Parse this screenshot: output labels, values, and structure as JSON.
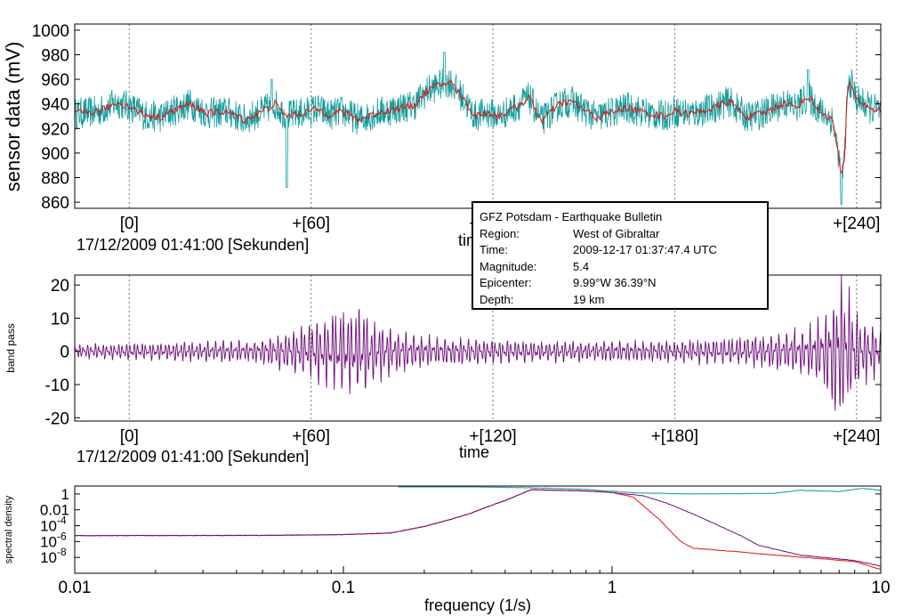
{
  "chart_data": [
    {
      "type": "line",
      "name": "sensor",
      "title": "",
      "ylabel": "sensor data (mV)",
      "xlabel": "time",
      "ylim": [
        855,
        1005
      ],
      "xlim": [
        -18,
        248
      ],
      "yticks": [
        860,
        880,
        900,
        920,
        940,
        960,
        980,
        1000
      ],
      "xticks": [
        {
          "value": 0,
          "label": "[0]"
        },
        {
          "value": 60,
          "label": "+[60]"
        },
        {
          "value": 120,
          "label": "+[120]"
        },
        {
          "value": 180,
          "label": "+[180]"
        },
        {
          "value": 240,
          "label": "+[240]"
        }
      ],
      "date_label": "17/12/2009 01:41:00 [Sekunden]",
      "series": [
        {
          "name": "raw",
          "color": "#139c9c",
          "baseline": 933,
          "noise_amp": 13,
          "spikes": [
            {
              "t": 47,
              "v": 960
            },
            {
              "t": 52,
              "v": 872
            },
            {
              "t": 104,
              "v": 982
            },
            {
              "t": 224,
              "v": 968
            },
            {
              "t": 235,
              "v": 858
            }
          ]
        },
        {
          "name": "smoothed",
          "color": "#e01010",
          "points": [
            [
              -18,
              932
            ],
            [
              -10,
              934
            ],
            [
              -4,
              941
            ],
            [
              0,
              938
            ],
            [
              5,
              931
            ],
            [
              10,
              929
            ],
            [
              15,
              935
            ],
            [
              20,
              940
            ],
            [
              26,
              932
            ],
            [
              32,
              934
            ],
            [
              38,
              927
            ],
            [
              44,
              934
            ],
            [
              48,
              940
            ],
            [
              52,
              930
            ],
            [
              58,
              933
            ],
            [
              62,
              936
            ],
            [
              66,
              931
            ],
            [
              70,
              934
            ],
            [
              76,
              927
            ],
            [
              82,
              933
            ],
            [
              88,
              936
            ],
            [
              94,
              939
            ],
            [
              98,
              950
            ],
            [
              102,
              955
            ],
            [
              106,
              958
            ],
            [
              110,
              945
            ],
            [
              114,
              930
            ],
            [
              118,
              933
            ],
            [
              122,
              930
            ],
            [
              128,
              938
            ],
            [
              132,
              945
            ],
            [
              136,
              926
            ],
            [
              142,
              940
            ],
            [
              146,
              942
            ],
            [
              150,
              935
            ],
            [
              154,
              929
            ],
            [
              158,
              932
            ],
            [
              164,
              937
            ],
            [
              170,
              933
            ],
            [
              176,
              930
            ],
            [
              180,
              934
            ],
            [
              186,
              932
            ],
            [
              192,
              936
            ],
            [
              198,
              942
            ],
            [
              204,
              929
            ],
            [
              210,
              933
            ],
            [
              216,
              941
            ],
            [
              220,
              937
            ],
            [
              224,
              946
            ],
            [
              228,
              934
            ],
            [
              232,
              927
            ],
            [
              234,
              900
            ],
            [
              235,
              879
            ],
            [
              236,
              893
            ],
            [
              237,
              950
            ],
            [
              238,
              958
            ],
            [
              240,
              944
            ],
            [
              244,
              937
            ],
            [
              248,
              934
            ]
          ]
        }
      ]
    },
    {
      "type": "line",
      "name": "bandpass",
      "ylabel": "band pass",
      "xlabel": "time",
      "ylim": [
        -21,
        23
      ],
      "xlim": [
        -18,
        248
      ],
      "yticks": [
        -20,
        -10,
        0,
        10,
        20
      ],
      "xticks": [
        {
          "value": 0,
          "label": "[0]"
        },
        {
          "value": 60,
          "label": "+[60]"
        },
        {
          "value": 120,
          "label": "+[120]"
        },
        {
          "value": 180,
          "label": "+[180]"
        },
        {
          "value": 240,
          "label": "+[240]"
        }
      ],
      "date_label": "17/12/2009 01:41:00 [Sekunden]",
      "series": [
        {
          "name": "band pass",
          "color": "#6e0f7a",
          "envelope": [
            [
              -18,
              2
            ],
            [
              40,
              3
            ],
            [
              50,
              5
            ],
            [
              58,
              7
            ],
            [
              66,
              10
            ],
            [
              72,
              12
            ],
            [
              76,
              13
            ],
            [
              80,
              9
            ],
            [
              88,
              6
            ],
            [
              100,
              4
            ],
            [
              130,
              3
            ],
            [
              180,
              3
            ],
            [
              205,
              4
            ],
            [
              225,
              7
            ],
            [
              230,
              11
            ],
            [
              234,
              22
            ],
            [
              237,
              17
            ],
            [
              241,
              10
            ],
            [
              248,
              6
            ]
          ]
        }
      ]
    },
    {
      "type": "line",
      "name": "spectrum",
      "xscale": "log",
      "yscale": "log",
      "xlim": [
        0.01,
        10
      ],
      "ylim": [
        1e-10,
        10
      ],
      "xlabel": "frequency (1/s)",
      "ylabel": "spectral density",
      "xticks": [
        {
          "value": 0.01,
          "label": "0.01"
        },
        {
          "value": 0.1,
          "label": "0.1"
        },
        {
          "value": 1,
          "label": "1"
        },
        {
          "value": 10,
          "label": "10"
        }
      ],
      "yticks": [
        {
          "value": 1,
          "label": "1",
          "sup": ""
        },
        {
          "value": 0.01,
          "label": "0.01",
          "sup": ""
        },
        {
          "value": 0.0001,
          "label": "10",
          "sup": "-4"
        },
        {
          "value": 1e-06,
          "label": "10",
          "sup": "-6"
        },
        {
          "value": 1e-08,
          "label": "10",
          "sup": "-8"
        }
      ],
      "series": [
        {
          "name": "sensor spectrum",
          "color": "#139c9c",
          "points": [
            [
              0.16,
              10
            ],
            [
              0.3,
              8
            ],
            [
              0.5,
              6
            ],
            [
              0.8,
              3.8
            ],
            [
              1.0,
              2.2
            ],
            [
              1.2,
              1.4
            ],
            [
              2.0,
              1.0
            ],
            [
              3.0,
              1.1
            ],
            [
              4.0,
              1.2
            ],
            [
              5.0,
              3.0
            ],
            [
              7.0,
              2.0
            ],
            [
              8.5,
              5.0
            ],
            [
              10,
              3.0
            ]
          ]
        },
        {
          "name": "smoothed spectrum",
          "color": "#e01010",
          "points": [
            [
              0.01,
              5.5e-06
            ],
            [
              0.05,
              6e-06
            ],
            [
              0.1,
              7.5e-06
            ],
            [
              0.15,
              1.2e-05
            ],
            [
              0.2,
              8e-05
            ],
            [
              0.25,
              0.0006
            ],
            [
              0.3,
              0.004
            ],
            [
              0.35,
              0.03
            ],
            [
              0.4,
              0.15
            ],
            [
              0.5,
              3.5
            ],
            [
              0.6,
              3.0
            ],
            [
              0.8,
              2.4
            ],
            [
              1.0,
              1.5
            ],
            [
              1.2,
              0.4
            ],
            [
              1.5,
              0.0006
            ],
            [
              1.8,
              1e-06
            ],
            [
              2.0,
              1.5e-07
            ],
            [
              2.5,
              8e-08
            ],
            [
              3.0,
              5e-08
            ],
            [
              4.0,
              2e-08
            ],
            [
              6.0,
              7e-09
            ],
            [
              8.0,
              3e-09
            ],
            [
              10,
              3e-10
            ]
          ]
        },
        {
          "name": "band pass spectrum",
          "color": "#6e0f7a",
          "points": [
            [
              0.01,
              5.5e-06
            ],
            [
              0.05,
              6e-06
            ],
            [
              0.1,
              7.5e-06
            ],
            [
              0.15,
              1.2e-05
            ],
            [
              0.2,
              8e-05
            ],
            [
              0.25,
              0.0006
            ],
            [
              0.3,
              0.004
            ],
            [
              0.35,
              0.03
            ],
            [
              0.4,
              0.15
            ],
            [
              0.5,
              3.5
            ],
            [
              0.6,
              3.0
            ],
            [
              0.8,
              2.4
            ],
            [
              1.0,
              1.5
            ],
            [
              1.3,
              0.6
            ],
            [
              1.6,
              0.07
            ],
            [
              2.0,
              0.003
            ],
            [
              2.5,
              0.0001
            ],
            [
              3.0,
              6e-06
            ],
            [
              3.5,
              3.5e-07
            ],
            [
              5.0,
              2e-08
            ],
            [
              8.0,
              4e-09
            ],
            [
              10,
              8e-10
            ]
          ]
        }
      ]
    }
  ],
  "info_box": {
    "title": "GFZ Potsdam - Earthquake Bulletin",
    "region_label": "Region:",
    "region": "West of Gibraltar",
    "time_label": "Time:",
    "time": "2009-12-17 01:37:47.4 UTC",
    "magnitude_label": "Magnitude:",
    "magnitude": "5.4",
    "epicenter_label": "Epicenter:",
    "epicenter": "9.99°W   36.39°N",
    "depth_label": "Depth:",
    "depth": "19 km"
  }
}
